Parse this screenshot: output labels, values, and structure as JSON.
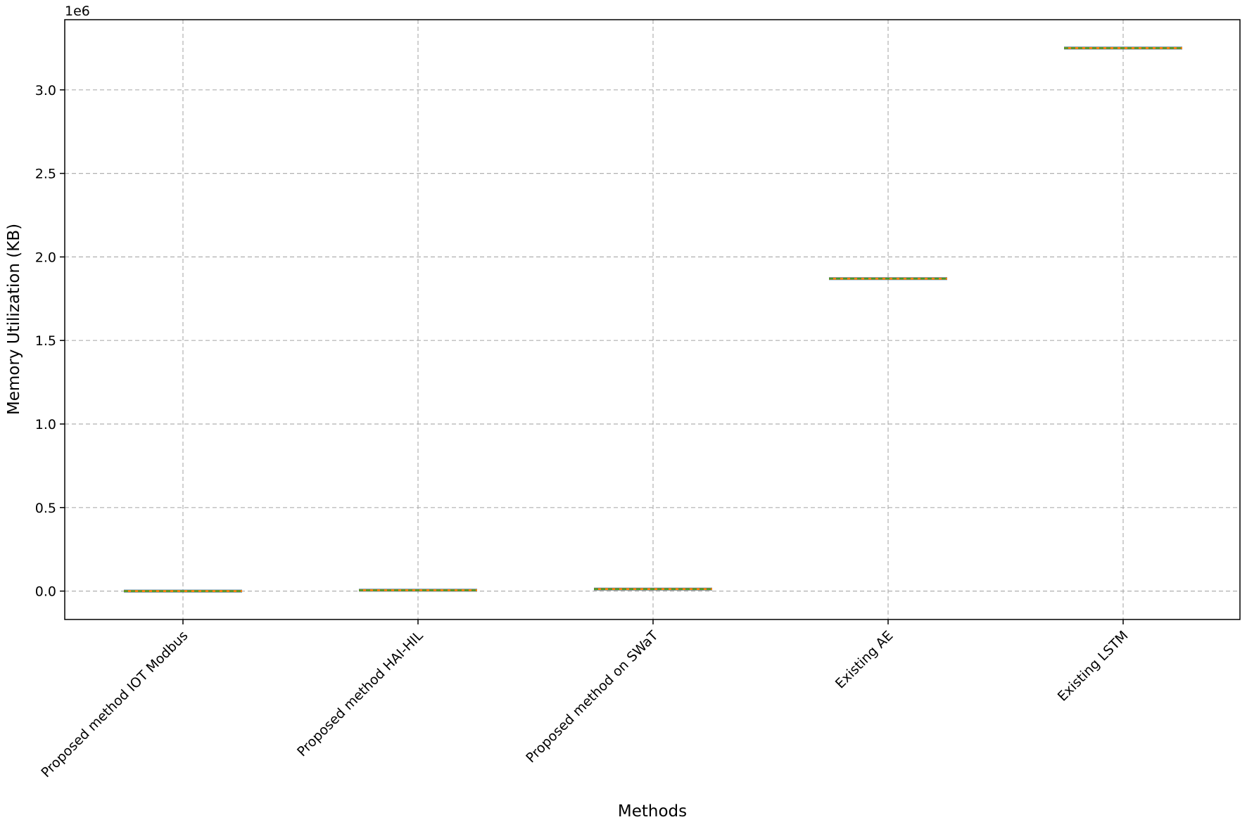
{
  "chart_data": {
    "type": "box",
    "title": "",
    "xlabel": "Methods",
    "ylabel": "Memory Utilization (KB)",
    "y_offset_label": "1e6",
    "y_scale_factor": 1000000,
    "ylim": [
      -170000,
      3420000
    ],
    "yticks": [
      0,
      500000,
      1000000,
      1500000,
      2000000,
      2500000,
      3000000
    ],
    "ytick_labels": [
      "0.0",
      "0.5",
      "1.0",
      "1.5",
      "2.0",
      "2.5",
      "3.0"
    ],
    "grid": true,
    "categories": [
      "Proposed method IOT Modbus",
      "Proposed method HAI-HIL",
      "Proposed method on SWaT",
      "Existing AE",
      "Existing LSTM"
    ],
    "values": [
      0,
      5000,
      12000,
      1870000,
      3250000
    ],
    "box_colors": {
      "box": "#1f77b4",
      "median": "#ff7f0e",
      "mean": "#2ca02c"
    }
  }
}
